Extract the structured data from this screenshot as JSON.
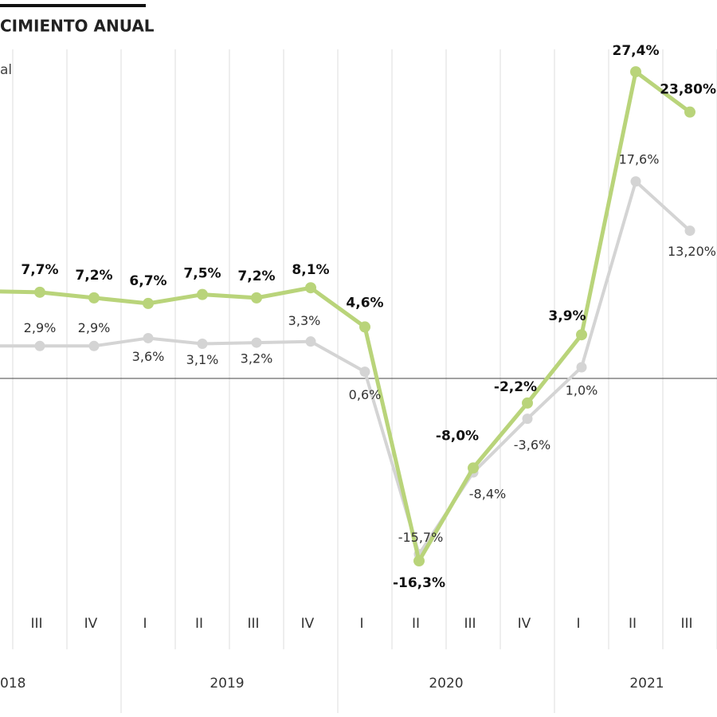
{
  "chart_data": {
    "type": "line",
    "title": "CIMIENTO ANUAL",
    "subtitle": "al",
    "categories": [
      null,
      "III",
      "IV",
      "I",
      "II",
      "III",
      "IV",
      "I",
      "II",
      "III",
      "IV",
      "I",
      "II",
      "III"
    ],
    "years": [
      "018",
      "2019",
      "2020",
      "2021"
    ],
    "series": [
      {
        "name": "green",
        "color": "#b9d47a",
        "values": [
          7.8,
          7.7,
          7.2,
          6.7,
          7.5,
          7.2,
          8.1,
          4.6,
          -16.3,
          -8.0,
          -2.2,
          3.9,
          27.4,
          23.8
        ],
        "value_labels": [
          null,
          "7,7%",
          "7,2%",
          "6,7%",
          "7,5%",
          "7,2%",
          "8,1%",
          "4,6%",
          "-16,3%",
          "-8,0%",
          "-2,2%",
          "3,9%",
          "27,4%",
          "23,80%"
        ]
      },
      {
        "name": "gray",
        "color": "#d4d4d4",
        "values": [
          2.9,
          2.9,
          2.9,
          3.6,
          3.1,
          3.2,
          3.3,
          0.6,
          -15.7,
          -8.4,
          -3.6,
          1.0,
          17.6,
          13.2
        ],
        "value_labels": [
          null,
          "2,9%",
          "2,9%",
          "3,6%",
          "3,1%",
          "3,2%",
          "3,3%",
          "0,6%",
          "-15,7%",
          "-8,4%",
          "-3,6%",
          "1,0%",
          "17,6%",
          "13,20%"
        ]
      }
    ],
    "ylim": [
      -24.2,
      29.4
    ]
  }
}
